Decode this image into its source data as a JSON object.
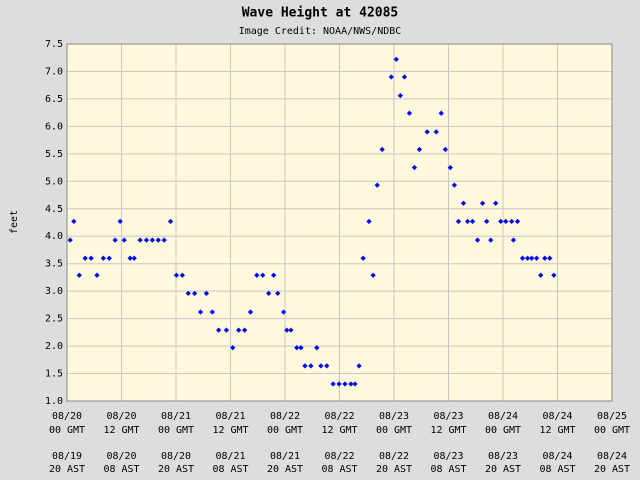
{
  "chart_data": {
    "type": "scatter",
    "title": "Wave Height at 42085",
    "subtitle": "Image Credit: NOAA/NWS/NDBC",
    "y_label": "feet",
    "color": "#0000ff",
    "x": [
      0.7,
      1.5,
      2.7,
      4.0,
      5.3,
      6.6,
      8.0,
      9.3,
      10.6,
      11.7,
      12.6,
      13.9,
      14.8,
      16.1,
      17.5,
      18.8,
      20.1,
      21.4,
      22.8,
      24.1,
      25.4,
      26.7,
      28.1,
      29.4,
      30.7,
      32.0,
      33.4,
      35.1,
      36.5,
      37.8,
      39.1,
      40.4,
      41.8,
      43.1,
      44.4,
      45.5,
      46.4,
      47.7,
      48.4,
      49.3,
      50.6,
      51.5,
      52.4,
      53.7,
      55.0,
      55.9,
      57.2,
      58.6,
      59.9,
      61.2,
      62.5,
      63.4,
      64.3,
      65.2,
      66.5,
      67.4,
      68.3,
      69.4,
      71.4,
      72.5,
      73.4,
      74.3,
      75.4,
      76.5,
      77.6,
      79.3,
      81.3,
      82.4,
      83.3,
      84.4,
      85.3,
      86.2,
      87.3,
      88.2,
      89.3,
      90.4,
      91.5,
      92.4,
      93.3,
      94.4,
      95.5,
      96.6,
      97.9,
      98.3,
      99.2,
      100.3,
      101.4,
      102.3,
      103.4,
      104.3,
      105.2,
      106.3,
      107.2
    ],
    "values": [
      3.93,
      4.27,
      3.29,
      3.6,
      3.6,
      3.29,
      3.6,
      3.6,
      3.93,
      4.27,
      3.93,
      3.6,
      3.6,
      3.93,
      3.93,
      3.93,
      3.93,
      3.93,
      4.27,
      3.29,
      3.29,
      2.96,
      2.96,
      2.62,
      2.96,
      2.62,
      2.29,
      2.29,
      1.97,
      2.29,
      2.29,
      2.62,
      3.29,
      3.29,
      2.96,
      3.29,
      2.96,
      2.62,
      2.29,
      2.29,
      1.97,
      1.97,
      1.64,
      1.64,
      1.97,
      1.64,
      1.64,
      1.31,
      1.31,
      1.31,
      1.31,
      1.31,
      1.64,
      3.6,
      4.27,
      3.29,
      4.93,
      5.58,
      6.9,
      7.22,
      6.56,
      6.9,
      6.24,
      5.25,
      5.58,
      5.9,
      5.9,
      6.24,
      5.58,
      5.25,
      4.93,
      4.27,
      4.6,
      4.27,
      4.27,
      3.93,
      4.6,
      4.27,
      3.93,
      4.6,
      4.27,
      4.27,
      4.27,
      3.93,
      4.27,
      3.6,
      3.6,
      3.6,
      3.6,
      3.29,
      3.6,
      3.6,
      3.29
    ],
    "xlim": [
      0,
      120
    ],
    "xticks": [
      {
        "value": 0,
        "label": "08/20"
      },
      {
        "value": 12,
        "label": "08/20"
      },
      {
        "value": 24,
        "label": "08/21"
      },
      {
        "value": 36,
        "label": "08/21"
      },
      {
        "value": 48,
        "label": "08/22"
      },
      {
        "value": 60,
        "label": "08/22"
      },
      {
        "value": 72,
        "label": "08/23"
      },
      {
        "value": 84,
        "label": "08/23"
      },
      {
        "value": 96,
        "label": "08/24"
      },
      {
        "value": 108,
        "label": "08/24"
      },
      {
        "value": 120,
        "label": "08/25"
      }
    ],
    "xtick_times": [
      "00 GMT",
      "12 GMT",
      "00 GMT",
      "12 GMT",
      "00 GMT",
      "12 GMT",
      "00 GMT",
      "12 GMT",
      "00 GMT",
      "12 GMT",
      "00 GMT"
    ],
    "xtick_local_dates": [
      "08/19",
      "08/20",
      "08/20",
      "08/21",
      "08/21",
      "08/22",
      "08/22",
      "08/23",
      "08/23",
      "08/24",
      "08/24"
    ],
    "xtick_local_times": [
      "20 AST",
      "08 AST",
      "20 AST",
      "08 AST",
      "20 AST",
      "08 AST",
      "20 AST",
      "08 AST",
      "20 AST",
      "08 AST",
      "20 AST"
    ],
    "ylim": [
      1,
      7.5
    ],
    "yticks": [
      {
        "value": 1,
        "label": "1.0"
      },
      1.5,
      {
        "value": 2,
        "label": "2.0"
      },
      2.5,
      {
        "value": 3,
        "label": "3.0"
      },
      3.5,
      {
        "value": 4,
        "label": "4.0"
      },
      4.5,
      {
        "value": 5,
        "label": "5.0"
      },
      5.5,
      {
        "value": 6,
        "label": "6.0"
      },
      6.5,
      {
        "value": 7,
        "label": "7.0"
      },
      7.5
    ],
    "grid": true
  }
}
